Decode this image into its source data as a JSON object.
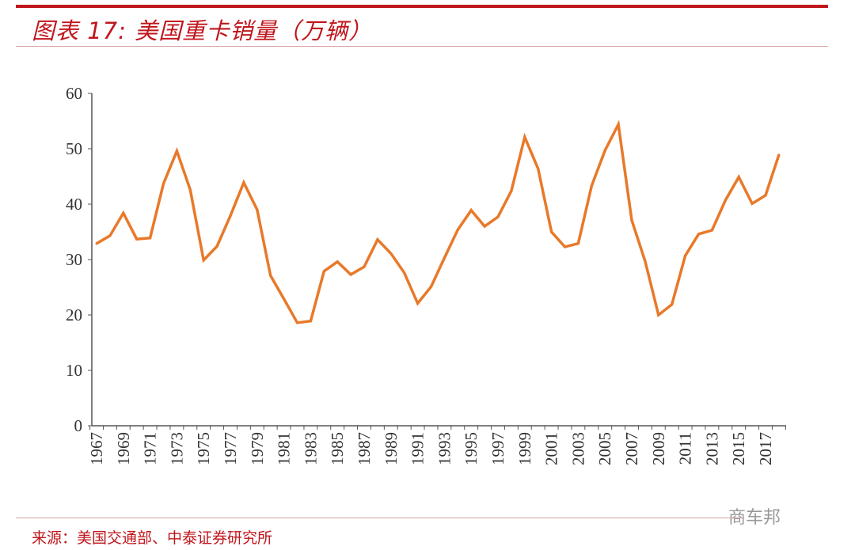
{
  "title": "图表 17:  美国重卡销量（万辆）",
  "source": "来源：美国交通部、中泰证券研究所",
  "watermark": "商车邦",
  "colors": {
    "accent": "#c0161c",
    "line": "#e8792a"
  },
  "chart_data": {
    "type": "line",
    "title": "美国重卡销量（万辆）",
    "xlabel": "",
    "ylabel": "",
    "ylim": [
      0,
      60
    ],
    "yticks": [
      0,
      10,
      20,
      30,
      40,
      50,
      60
    ],
    "x": [
      1967,
      1968,
      1969,
      1970,
      1971,
      1972,
      1973,
      1974,
      1975,
      1976,
      1977,
      1978,
      1979,
      1980,
      1981,
      1982,
      1983,
      1984,
      1985,
      1986,
      1987,
      1988,
      1989,
      1990,
      1991,
      1992,
      1993,
      1994,
      1995,
      1996,
      1997,
      1998,
      1999,
      2000,
      2001,
      2002,
      2003,
      2004,
      2005,
      2006,
      2007,
      2008,
      2009,
      2010,
      2011,
      2012,
      2013,
      2014,
      2015,
      2016,
      2017,
      2018
    ],
    "xtick_labels": [
      "1967",
      "1969",
      "1971",
      "1973",
      "1975",
      "1977",
      "1979",
      "1981",
      "1983",
      "1985",
      "1987",
      "1989",
      "1991",
      "1993",
      "1995",
      "1997",
      "1999",
      "2001",
      "2003",
      "2005",
      "2007",
      "2009",
      "2011",
      "2013",
      "2015",
      "2017"
    ],
    "series": [
      {
        "name": "美国重卡销量",
        "values": [
          32.9,
          34.3,
          38.4,
          33.7,
          33.9,
          43.7,
          49.6,
          42.6,
          29.9,
          32.4,
          37.9,
          43.9,
          39.0,
          27.1,
          22.9,
          18.6,
          18.9,
          27.9,
          29.6,
          27.3,
          28.7,
          33.6,
          31.1,
          27.6,
          22.1,
          25.1,
          30.3,
          35.4,
          38.9,
          36.0,
          37.7,
          42.4,
          52.1,
          46.4,
          35.0,
          32.3,
          32.9,
          43.3,
          49.7,
          54.4,
          37.1,
          29.7,
          20.0,
          21.9,
          30.7,
          34.6,
          35.3,
          40.7,
          44.9,
          40.1,
          41.6,
          48.9
        ]
      }
    ],
    "grid": false,
    "legend": "none"
  }
}
